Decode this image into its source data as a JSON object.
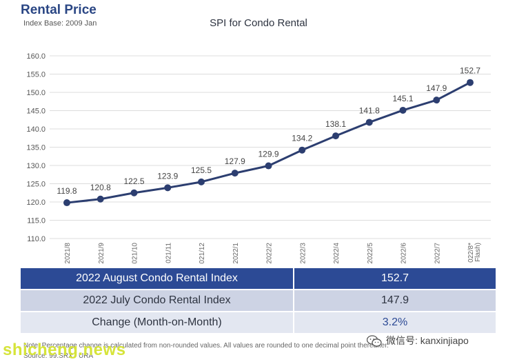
{
  "header": {
    "title": "Rental Price",
    "subtitle": "Index Base: 2009 Jan"
  },
  "chart_data": {
    "type": "line",
    "title": "SPI for Condo Rental",
    "xlabel": "",
    "ylabel": "",
    "ylim": [
      110.0,
      160.0
    ],
    "yticks": [
      "110.0",
      "115.0",
      "120.0",
      "125.0",
      "130.0",
      "135.0",
      "140.0",
      "145.0",
      "150.0",
      "155.0",
      "160.0"
    ],
    "categories": [
      "2021/8",
      "2021/9",
      "021/10",
      "021/11",
      "021/12",
      "2022/1",
      "2022/2",
      "2022/3",
      "2022/4",
      "2022/5",
      "2022/6",
      "2022/7",
      "022/8* Flash)"
    ],
    "values": [
      119.8,
      120.8,
      122.5,
      123.9,
      125.5,
      127.9,
      129.9,
      134.2,
      138.1,
      141.8,
      145.1,
      147.9,
      152.7
    ],
    "data_labels": [
      "119.8",
      "120.8",
      "122.5",
      "123.9",
      "125.5",
      "127.9",
      "129.9",
      "134.2",
      "138.1",
      "141.8",
      "145.1",
      "147.9",
      "152.7"
    ],
    "grid": true,
    "line_color": "#2c3e70",
    "grid_color": "#dcdcdc"
  },
  "summary": {
    "rows": [
      {
        "label": "2022 August Condo Rental Index",
        "value": "152.7"
      },
      {
        "label": "2022 July Condo Rental Index",
        "value": "147.9"
      },
      {
        "label": "Change (Month-on-Month)",
        "value": "3.2%"
      }
    ]
  },
  "footer": {
    "note": "Note: Percentage change is calculated from non-rounded values.  All values are rounded to one decimal point thereafter.",
    "source": "Source: 99.SRX / URA"
  },
  "watermarks": {
    "left": "shicheng.news",
    "right": "微信号: kanxinjiapo",
    "right_icon": "wechat-icon"
  },
  "colors": {
    "brand": "#2a4684",
    "table_primary": "#2c4a95",
    "table_secondary": "#cdd3e4",
    "table_tertiary": "#e3e7f1",
    "watermark": "#d6e43a"
  }
}
